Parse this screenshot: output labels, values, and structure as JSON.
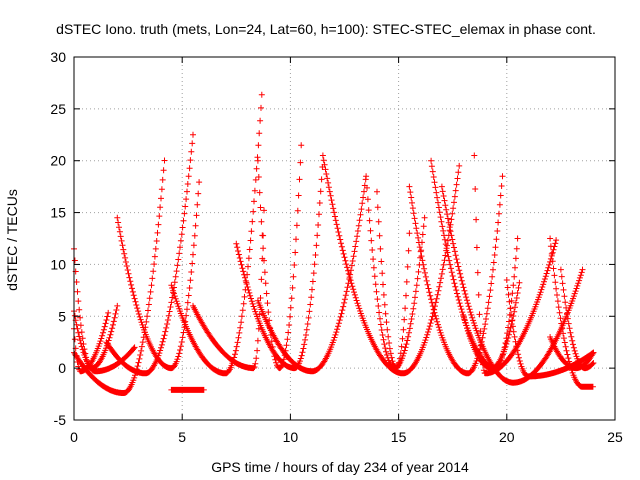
{
  "chart_data": {
    "type": "scatter",
    "title": "dSTEC Iono. truth (mets, Lon=24, Lat=60, h=100): STEC-STEC_elemax in phase cont.",
    "xlabel": "GPS time / hours of day 234 of year 2014",
    "ylabel": "dSTEC  / TECUs",
    "xlim": [
      0,
      25
    ],
    "ylim": [
      -5,
      30
    ],
    "xticks": [
      0,
      5,
      10,
      15,
      20,
      25
    ],
    "yticks": [
      -5,
      0,
      5,
      10,
      15,
      20,
      25,
      30
    ],
    "grid": true,
    "legend": "none",
    "marker": "plus",
    "series_color": "#ff0000",
    "arcs": [
      {
        "start": 0.0,
        "min_x": 0.8,
        "end": 2.0,
        "min_y": 0.0,
        "start_y": 11.5,
        "end_y": 6.0
      },
      {
        "start": 0.0,
        "min_x": 1.0,
        "end": 2.8,
        "min_y": -0.3,
        "start_y": 5.5,
        "end_y": 2.0
      },
      {
        "start": 0.0,
        "min_x": 2.3,
        "end": 4.2,
        "min_y": -2.4,
        "start_y": 1.5,
        "end_y": 20.5
      },
      {
        "start": 0.0,
        "min_x": 0.3,
        "end": 1.6,
        "min_y": -0.3,
        "start_y": 3.8,
        "end_y": 5.5
      },
      {
        "start": 1.5,
        "min_x": 3.3,
        "end": 5.5,
        "min_y": -0.5,
        "start_y": 2.5,
        "end_y": 22.5
      },
      {
        "start": 2.0,
        "min_x": 4.5,
        "end": 5.8,
        "min_y": 0.0,
        "start_y": 14.5,
        "end_y": 18.5
      },
      {
        "start": 4.5,
        "min_x": 5.2,
        "end": 6.0,
        "min_y": -2.1,
        "start_y": -2.1,
        "end_y": -2.1
      },
      {
        "start": 4.5,
        "min_x": 7.0,
        "end": 8.7,
        "min_y": -0.5,
        "start_y": 8.0,
        "end_y": 27.0
      },
      {
        "start": 5.5,
        "min_x": 8.3,
        "end": 8.8,
        "min_y": 0.0,
        "start_y": 6.0,
        "end_y": 16.5
      },
      {
        "start": 7.5,
        "min_x": 10.2,
        "end": 11.5,
        "min_y": 0.0,
        "start_y": 12.0,
        "end_y": 20.0
      },
      {
        "start": 8.5,
        "min_x": 9.5,
        "end": 10.5,
        "min_y": 0.0,
        "start_y": 20.0,
        "end_y": 21.5
      },
      {
        "start": 8.5,
        "min_x": 11.0,
        "end": 13.5,
        "min_y": -0.3,
        "start_y": 6.5,
        "end_y": 18.5
      },
      {
        "start": 11.5,
        "min_x": 15.2,
        "end": 17.8,
        "min_y": -0.5,
        "start_y": 20.5,
        "end_y": 19.5
      },
      {
        "start": 13.5,
        "min_x": 14.8,
        "end": 16.2,
        "min_y": 0.0,
        "start_y": 18.5,
        "end_y": 14.5
      },
      {
        "start": 14.0,
        "min_x": 14.9,
        "end": 15.5,
        "min_y": 0.0,
        "start_y": 17.0,
        "end_y": 13.0
      },
      {
        "start": 15.5,
        "min_x": 18.2,
        "end": 19.8,
        "min_y": -0.5,
        "start_y": 17.5,
        "end_y": 18.5
      },
      {
        "start": 16.5,
        "min_x": 19.5,
        "end": 20.5,
        "min_y": 0.0,
        "start_y": 20.0,
        "end_y": 12.5
      },
      {
        "start": 17.0,
        "min_x": 20.3,
        "end": 23.5,
        "min_y": -1.4,
        "start_y": 17.5,
        "end_y": 9.5
      },
      {
        "start": 18.0,
        "min_x": 19.3,
        "end": 20.6,
        "min_y": 0.0,
        "start_y": 5.0,
        "end_y": 8.5
      },
      {
        "start": 18.5,
        "min_x": 19.0,
        "end": 22.3,
        "min_y": -0.5,
        "start_y": 20.5,
        "end_y": 12.5
      },
      {
        "start": 20.0,
        "min_x": 21.0,
        "end": 24.0,
        "min_y": -0.8,
        "start_y": 8.5,
        "end_y": 1.5
      },
      {
        "start": 22.0,
        "min_x": 23.5,
        "end": 24.0,
        "min_y": -1.8,
        "start_y": 12.5,
        "end_y": -1.8
      },
      {
        "start": 22.0,
        "min_x": 23.2,
        "end": 24.0,
        "min_y": 0.0,
        "start_y": 3.0,
        "end_y": 1.5
      },
      {
        "start": 22.5,
        "min_x": 23.6,
        "end": 24.0,
        "min_y": 0.0,
        "start_y": 9.5,
        "end_y": 0.5
      }
    ]
  }
}
